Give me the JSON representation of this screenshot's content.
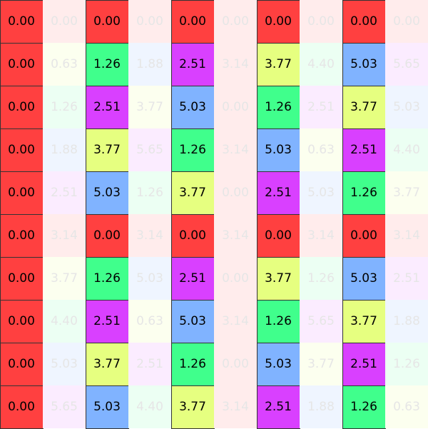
{
  "palette": {
    "0": "#ff4040",
    "1": "#40ff8c",
    "2": "#d940ff",
    "3": "#80b3ff",
    "4": "#e6ff80"
  },
  "faded_palette": {
    "0": "#ffecec",
    "1": "#ecfff3",
    "2": "#fbecff",
    "3": "#eff5ff",
    "4": "#fcffef"
  },
  "grid": [
    [
      {
        "v": "0.00",
        "c": 0,
        "f": false
      },
      {
        "v": "0.00",
        "c": 0,
        "f": true
      },
      {
        "v": "0.00",
        "c": 0,
        "f": false
      },
      {
        "v": "0.00",
        "c": 0,
        "f": true
      },
      {
        "v": "0.00",
        "c": 0,
        "f": false
      },
      {
        "v": "0.00",
        "c": 0,
        "f": true
      },
      {
        "v": "0.00",
        "c": 0,
        "f": false
      },
      {
        "v": "0.00",
        "c": 0,
        "f": true
      },
      {
        "v": "0.00",
        "c": 0,
        "f": false
      },
      {
        "v": "0.00",
        "c": 0,
        "f": true
      }
    ],
    [
      {
        "v": "0.00",
        "c": 0,
        "f": false
      },
      {
        "v": "0.63",
        "c": 4,
        "f": true
      },
      {
        "v": "1.26",
        "c": 1,
        "f": false
      },
      {
        "v": "1.88",
        "c": 3,
        "f": true
      },
      {
        "v": "2.51",
        "c": 2,
        "f": false
      },
      {
        "v": "3.14",
        "c": 0,
        "f": true
      },
      {
        "v": "3.77",
        "c": 4,
        "f": false
      },
      {
        "v": "4.40",
        "c": 1,
        "f": true
      },
      {
        "v": "5.03",
        "c": 3,
        "f": false
      },
      {
        "v": "5.65",
        "c": 2,
        "f": true
      }
    ],
    [
      {
        "v": "0.00",
        "c": 0,
        "f": false
      },
      {
        "v": "1.26",
        "c": 1,
        "f": true
      },
      {
        "v": "2.51",
        "c": 2,
        "f": false
      },
      {
        "v": "3.77",
        "c": 4,
        "f": true
      },
      {
        "v": "5.03",
        "c": 3,
        "f": false
      },
      {
        "v": "0.00",
        "c": 0,
        "f": true
      },
      {
        "v": "1.26",
        "c": 1,
        "f": false
      },
      {
        "v": "2.51",
        "c": 2,
        "f": true
      },
      {
        "v": "3.77",
        "c": 4,
        "f": false
      },
      {
        "v": "5.03",
        "c": 3,
        "f": true
      }
    ],
    [
      {
        "v": "0.00",
        "c": 0,
        "f": false
      },
      {
        "v": "1.88",
        "c": 3,
        "f": true
      },
      {
        "v": "3.77",
        "c": 4,
        "f": false
      },
      {
        "v": "5.65",
        "c": 2,
        "f": true
      },
      {
        "v": "1.26",
        "c": 1,
        "f": false
      },
      {
        "v": "3.14",
        "c": 0,
        "f": true
      },
      {
        "v": "5.03",
        "c": 3,
        "f": false
      },
      {
        "v": "0.63",
        "c": 4,
        "f": true
      },
      {
        "v": "2.51",
        "c": 2,
        "f": false
      },
      {
        "v": "4.40",
        "c": 1,
        "f": true
      }
    ],
    [
      {
        "v": "0.00",
        "c": 0,
        "f": false
      },
      {
        "v": "2.51",
        "c": 2,
        "f": true
      },
      {
        "v": "5.03",
        "c": 3,
        "f": false
      },
      {
        "v": "1.26",
        "c": 1,
        "f": true
      },
      {
        "v": "3.77",
        "c": 4,
        "f": false
      },
      {
        "v": "0.00",
        "c": 0,
        "f": true
      },
      {
        "v": "2.51",
        "c": 2,
        "f": false
      },
      {
        "v": "5.03",
        "c": 3,
        "f": true
      },
      {
        "v": "1.26",
        "c": 1,
        "f": false
      },
      {
        "v": "3.77",
        "c": 4,
        "f": true
      }
    ],
    [
      {
        "v": "0.00",
        "c": 0,
        "f": false
      },
      {
        "v": "3.14",
        "c": 0,
        "f": true
      },
      {
        "v": "0.00",
        "c": 0,
        "f": false
      },
      {
        "v": "3.14",
        "c": 0,
        "f": true
      },
      {
        "v": "0.00",
        "c": 0,
        "f": false
      },
      {
        "v": "3.14",
        "c": 0,
        "f": true
      },
      {
        "v": "0.00",
        "c": 0,
        "f": false
      },
      {
        "v": "3.14",
        "c": 0,
        "f": true
      },
      {
        "v": "0.00",
        "c": 0,
        "f": false
      },
      {
        "v": "3.14",
        "c": 0,
        "f": true
      }
    ],
    [
      {
        "v": "0.00",
        "c": 0,
        "f": false
      },
      {
        "v": "3.77",
        "c": 4,
        "f": true
      },
      {
        "v": "1.26",
        "c": 1,
        "f": false
      },
      {
        "v": "5.03",
        "c": 3,
        "f": true
      },
      {
        "v": "2.51",
        "c": 2,
        "f": false
      },
      {
        "v": "0.00",
        "c": 0,
        "f": true
      },
      {
        "v": "3.77",
        "c": 4,
        "f": false
      },
      {
        "v": "1.26",
        "c": 1,
        "f": true
      },
      {
        "v": "5.03",
        "c": 3,
        "f": false
      },
      {
        "v": "2.51",
        "c": 2,
        "f": true
      }
    ],
    [
      {
        "v": "0.00",
        "c": 0,
        "f": false
      },
      {
        "v": "4.40",
        "c": 1,
        "f": true
      },
      {
        "v": "2.51",
        "c": 2,
        "f": false
      },
      {
        "v": "0.63",
        "c": 4,
        "f": true
      },
      {
        "v": "5.03",
        "c": 3,
        "f": false
      },
      {
        "v": "3.14",
        "c": 0,
        "f": true
      },
      {
        "v": "1.26",
        "c": 1,
        "f": false
      },
      {
        "v": "5.65",
        "c": 2,
        "f": true
      },
      {
        "v": "3.77",
        "c": 4,
        "f": false
      },
      {
        "v": "1.88",
        "c": 3,
        "f": true
      }
    ],
    [
      {
        "v": "0.00",
        "c": 0,
        "f": false
      },
      {
        "v": "5.03",
        "c": 3,
        "f": true
      },
      {
        "v": "3.77",
        "c": 4,
        "f": false
      },
      {
        "v": "2.51",
        "c": 2,
        "f": true
      },
      {
        "v": "1.26",
        "c": 1,
        "f": false
      },
      {
        "v": "0.00",
        "c": 0,
        "f": true
      },
      {
        "v": "5.03",
        "c": 3,
        "f": false
      },
      {
        "v": "3.77",
        "c": 4,
        "f": true
      },
      {
        "v": "2.51",
        "c": 2,
        "f": false
      },
      {
        "v": "1.26",
        "c": 1,
        "f": true
      }
    ],
    [
      {
        "v": "0.00",
        "c": 0,
        "f": false
      },
      {
        "v": "5.65",
        "c": 2,
        "f": true
      },
      {
        "v": "5.03",
        "c": 3,
        "f": false
      },
      {
        "v": "4.40",
        "c": 1,
        "f": true
      },
      {
        "v": "3.77",
        "c": 4,
        "f": false
      },
      {
        "v": "3.14",
        "c": 0,
        "f": true
      },
      {
        "v": "2.51",
        "c": 2,
        "f": false
      },
      {
        "v": "1.88",
        "c": 3,
        "f": true
      },
      {
        "v": "1.26",
        "c": 1,
        "f": false
      },
      {
        "v": "0.63",
        "c": 4,
        "f": true
      }
    ]
  ]
}
